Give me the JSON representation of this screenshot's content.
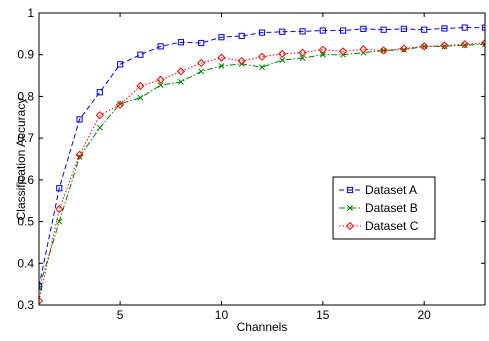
{
  "chart_data": {
    "type": "line",
    "xlabel": "Channels",
    "ylabel": "Classification Accuracy",
    "xlim": [
      1,
      23
    ],
    "ylim": [
      0.3,
      1.0
    ],
    "x_ticks": [
      5,
      10,
      15,
      20
    ],
    "y_ticks": [
      0.3,
      0.4,
      0.5,
      0.6,
      0.7,
      0.8,
      0.9,
      1.0
    ],
    "x_tick_labels": [
      "5",
      "10",
      "15",
      "20"
    ],
    "y_tick_labels": [
      "0.3",
      "0.4",
      "0.5",
      "0.6",
      "0.7",
      "0.8",
      "0.9",
      "1"
    ],
    "grid": false,
    "legend_position": "center-right",
    "x": [
      1,
      2,
      3,
      4,
      5,
      6,
      7,
      8,
      9,
      10,
      11,
      12,
      13,
      14,
      15,
      16,
      17,
      18,
      19,
      20,
      21,
      22,
      23
    ],
    "series": [
      {
        "name": "Dataset A",
        "color": "#0000ff",
        "line_style": "dashed",
        "marker": "square",
        "values": [
          0.345,
          0.58,
          0.745,
          0.81,
          0.877,
          0.9,
          0.92,
          0.93,
          0.928,
          0.942,
          0.945,
          0.953,
          0.955,
          0.956,
          0.958,
          0.958,
          0.962,
          0.96,
          0.962,
          0.96,
          0.963,
          0.965,
          0.965
        ]
      },
      {
        "name": "Dataset B",
        "color": "#008000",
        "line_style": "dash-dot",
        "marker": "x",
        "values": [
          0.34,
          0.5,
          0.655,
          0.725,
          0.782,
          0.797,
          0.827,
          0.835,
          0.86,
          0.873,
          0.878,
          0.87,
          0.887,
          0.892,
          0.9,
          0.9,
          0.905,
          0.91,
          0.912,
          0.92,
          0.92,
          0.923,
          0.925
        ]
      },
      {
        "name": "Dataset C",
        "color": "#ff0000",
        "line_style": "dotted",
        "marker": "diamond",
        "values": [
          0.31,
          0.53,
          0.66,
          0.755,
          0.78,
          0.825,
          0.84,
          0.86,
          0.88,
          0.893,
          0.885,
          0.895,
          0.902,
          0.905,
          0.912,
          0.908,
          0.913,
          0.91,
          0.915,
          0.92,
          0.922,
          0.925,
          0.928
        ]
      }
    ]
  }
}
